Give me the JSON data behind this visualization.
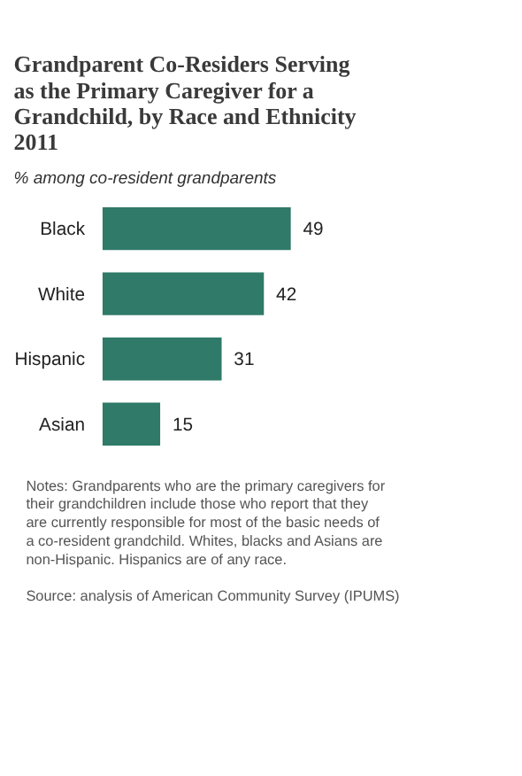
{
  "chart_data": {
    "type": "bar",
    "orientation": "horizontal",
    "title": "Grandparent Co-Residers Serving as the Primary Caregiver for a Grandchild, by Race and Ethnicity 2011",
    "subtitle": "% among co-resident grandparents",
    "categories": [
      "Black",
      "White",
      "Hispanic",
      "Asian"
    ],
    "values": [
      49,
      42,
      31,
      15
    ],
    "color": "#2f7a68",
    "data_labels": true,
    "annotations": [
      "Notes: Grandparents who are the primary caregivers for their grandchildren include those who report that they are currently responsible for most of the basic needs of a co-resident grandchild. Whites, blacks and Asians are non-Hispanic. Hispanics are of any race.",
      "Source: analysis of American Community Survey (IPUMS)"
    ]
  }
}
